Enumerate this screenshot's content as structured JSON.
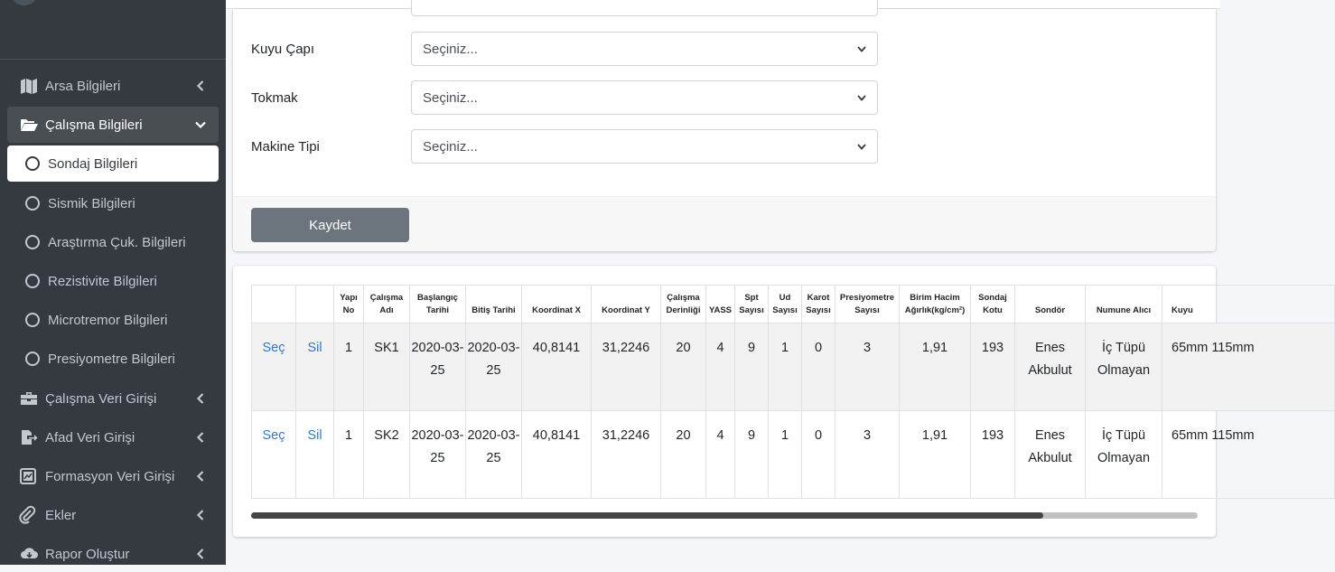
{
  "sidebar": {
    "items": [
      {
        "label": "Arsa Bilgileri",
        "icon": "map-icon"
      },
      {
        "label": "Çalışma Bilgileri",
        "icon": "folder-open-icon"
      },
      {
        "label": "Sondaj Bilgileri",
        "icon": "circle-icon"
      },
      {
        "label": "Sismik Bilgileri",
        "icon": "circle-icon"
      },
      {
        "label": "Araştırma Çuk. Bilgileri",
        "icon": "circle-icon"
      },
      {
        "label": "Rezistivite Bilgileri",
        "icon": "circle-icon"
      },
      {
        "label": "Microtremor Bilgileri",
        "icon": "circle-icon"
      },
      {
        "label": "Presiyometre Bilgileri",
        "icon": "circle-icon"
      },
      {
        "label": "Çalışma Veri Girişi",
        "icon": "toolbox-icon"
      },
      {
        "label": "Afad Veri Girişi",
        "icon": "file-export-icon"
      },
      {
        "label": "Formasyon Veri Girişi",
        "icon": "chart-image-icon"
      },
      {
        "label": "Ekler",
        "icon": "paperclip-icon"
      },
      {
        "label": "Rapor Oluştur",
        "icon": "cloud-download-icon"
      }
    ]
  },
  "form": {
    "fields": [
      {
        "label": "Kuyu Çapı",
        "value": "Seçiniz..."
      },
      {
        "label": "Tokmak",
        "value": "Seçiniz..."
      },
      {
        "label": "Makine Tipi",
        "value": "Seçiniz..."
      }
    ],
    "save_label": "Kaydet"
  },
  "table": {
    "headers": [
      "",
      "",
      "Yapı No",
      "Çalışma Adı",
      "Başlangıç Tarihi",
      "Bitiş Tarihi",
      "Koordinat X",
      "Koordinat Y",
      "Çalışma Derinliği",
      "YASS",
      "Spt Sayısı",
      "Ud Sayısı",
      "Karot Sayısı",
      "Presiyometre Sayısı",
      "Birim Hacim Ağırlık(kg/cm²)",
      "Sondaj Kotu",
      "Sondör",
      "Numune Alıcı",
      "Kuyu"
    ],
    "rows": [
      [
        "Seç",
        "Sil",
        "1",
        "SK1",
        "2020-03-25",
        "2020-03-25",
        "40,8141",
        "31,2246",
        "20",
        "4",
        "9",
        "1",
        "0",
        "3",
        "1,91",
        "193",
        "Enes Akbulut",
        "İç Tüpü Olmayan",
        "65mm 115mm"
      ],
      [
        "Seç",
        "Sil",
        "1",
        "SK2",
        "2020-03-25",
        "2020-03-25",
        "40,8141",
        "31,2246",
        "20",
        "4",
        "9",
        "1",
        "0",
        "3",
        "1,91",
        "193",
        "Enes Akbulut",
        "İç Tüpü Olmayan",
        "65mm 115mm"
      ]
    ]
  },
  "colors": {
    "sidebar_bg": "#343a40",
    "sidebar_text": "#c2c7d0",
    "link": "#3577c4",
    "button_secondary": "#6c757d"
  }
}
